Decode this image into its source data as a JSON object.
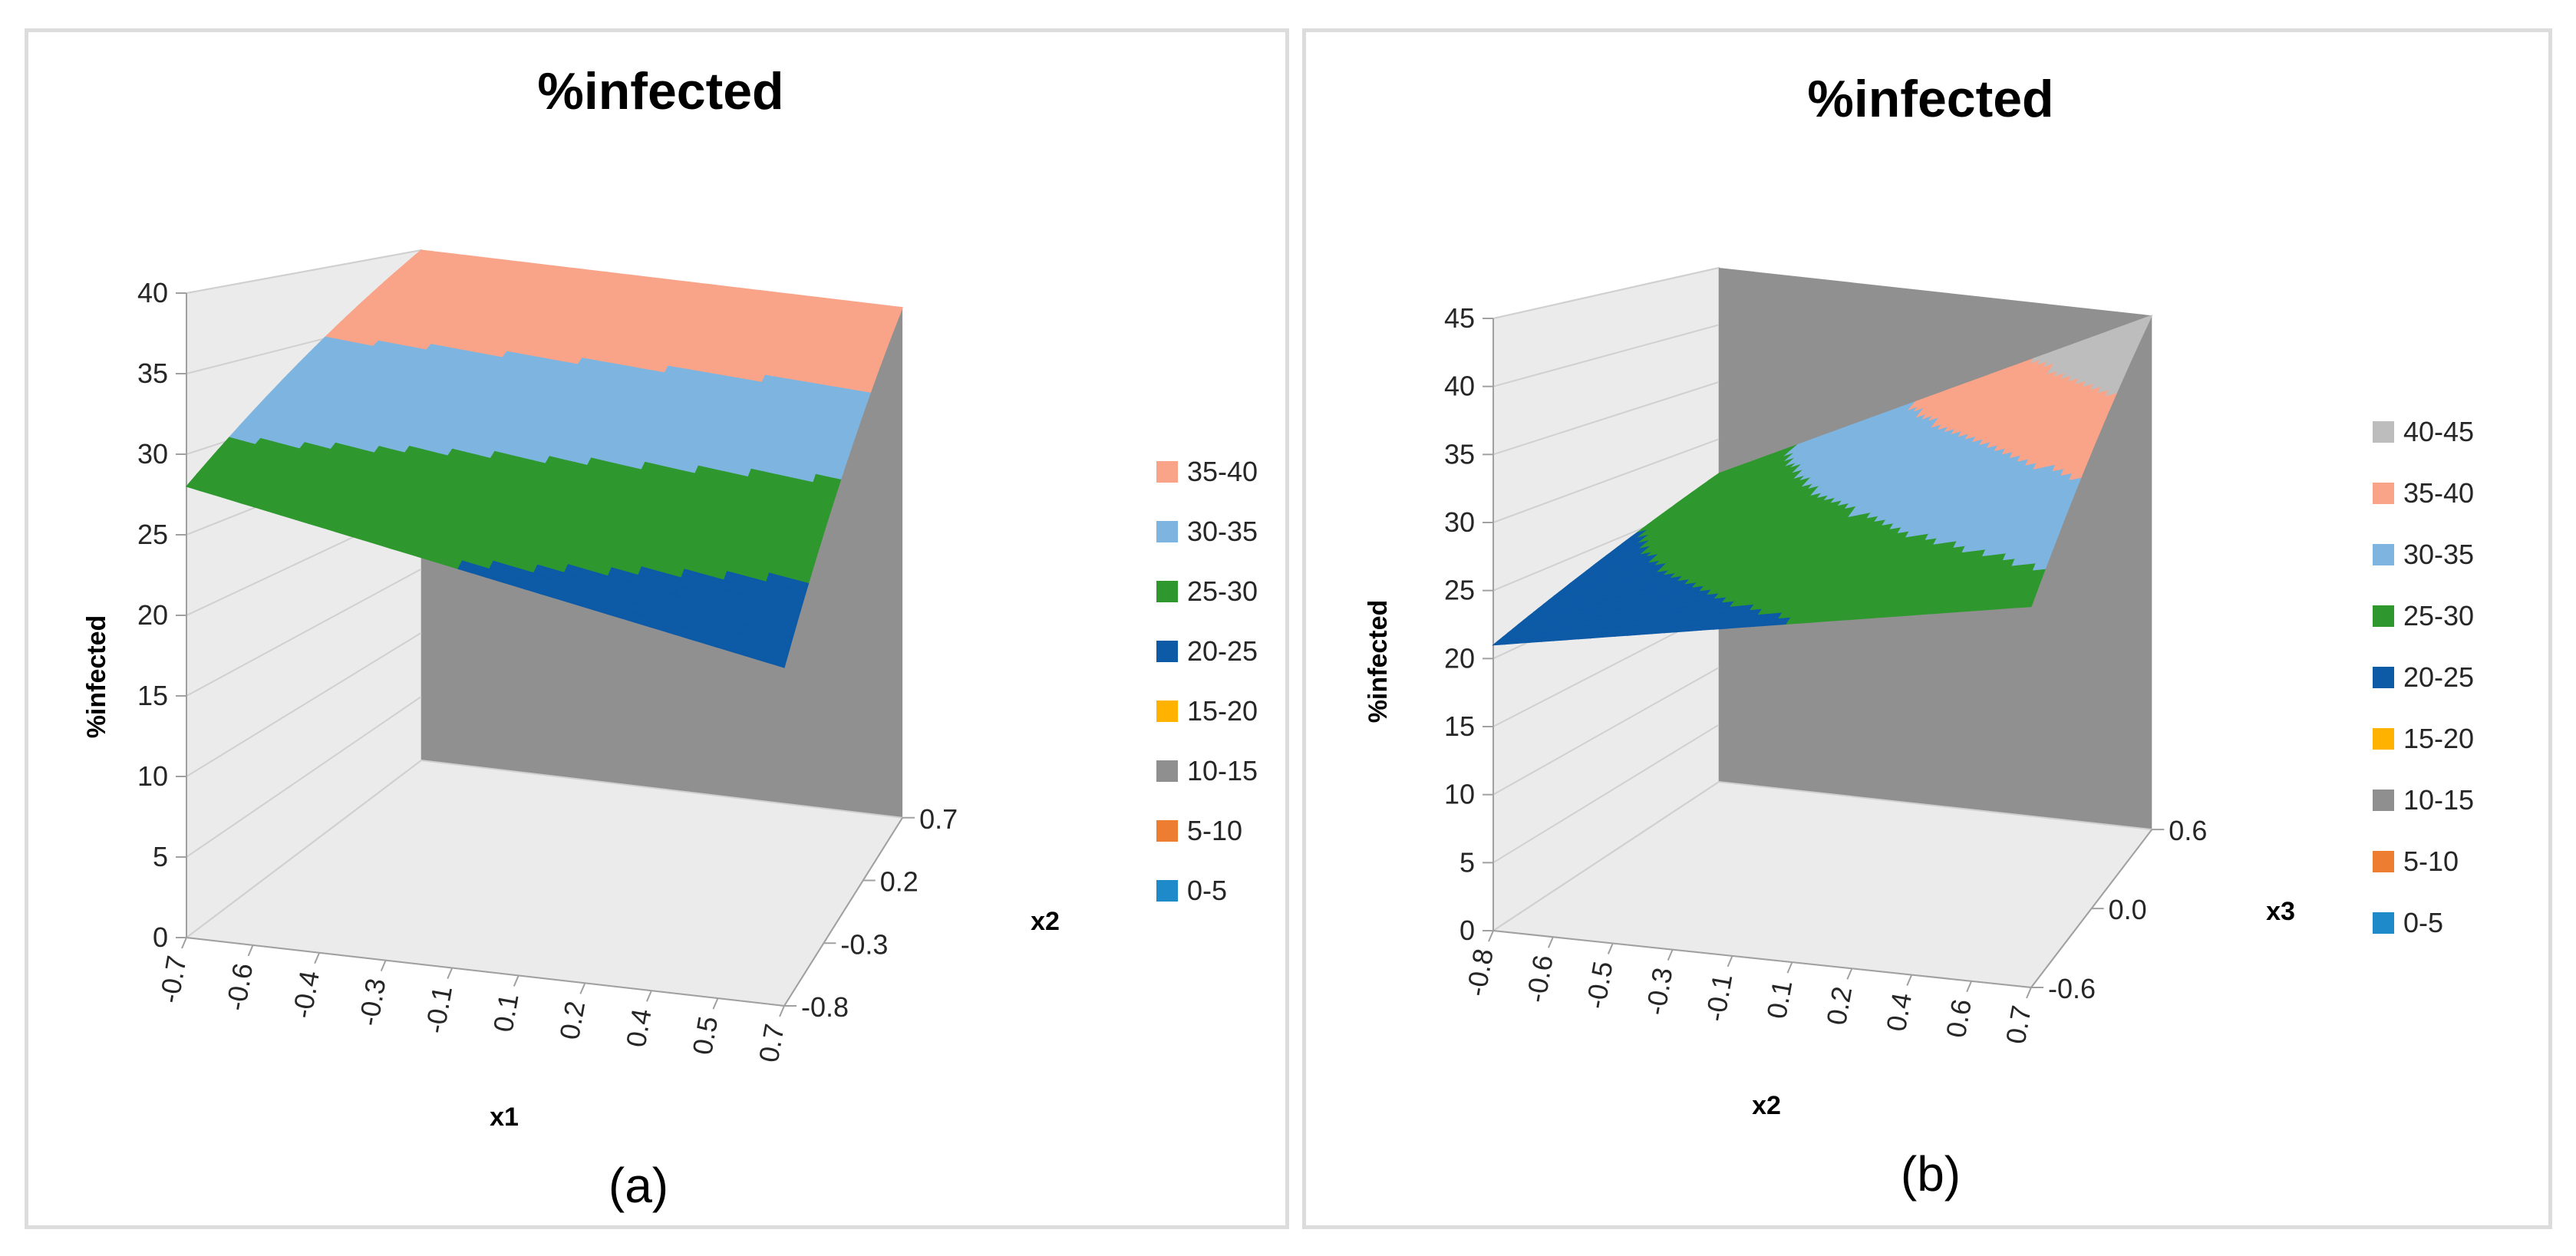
{
  "colors": {
    "0-5": "#1f8ac9",
    "5-10": "#ed7d31",
    "10-15": "#8f8f8f",
    "15-20": "#ffb200",
    "20-25": "#0d5aa7",
    "25-30": "#2e982e",
    "30-35": "#7eb5e0",
    "35-40": "#f9a488",
    "40-45": "#bdbdbd",
    "wall_light": "#ebebeb",
    "wall_dark": "#909090",
    "grid": "#d0d0d0"
  },
  "chart_data": [
    {
      "type": "surface",
      "caption": "(a)",
      "title": "%infected",
      "zlabel": "%infected",
      "xlabel": "x1",
      "ylabel": "x2",
      "zlim": [
        0,
        40
      ],
      "z_ticks": [
        "0",
        "5",
        "10",
        "15",
        "20",
        "25",
        "30",
        "35",
        "40"
      ],
      "x_ticks": [
        "-0.7",
        "-0.6",
        "-0.4",
        "-0.3",
        "-0.1",
        "0.1",
        "0.2",
        "0.4",
        "0.5",
        "0.7"
      ],
      "y_ticks": [
        "-0.8",
        "-0.3",
        "0.2",
        "0.7"
      ],
      "legend": [
        "35-40",
        "30-35",
        "25-30",
        "20-25",
        "15-20",
        "10-15",
        "5-10",
        "0-5"
      ],
      "surface_corners": {
        "x_min_y_min": 28,
        "x_max_y_min": 21,
        "x_min_y_max": 40,
        "x_max_y_max": 40
      }
    },
    {
      "type": "surface",
      "caption": "(b)",
      "title": "%infected",
      "zlabel": "%infected",
      "xlabel": "x2",
      "ylabel": "x3",
      "zlim": [
        0,
        45
      ],
      "z_ticks": [
        "0",
        "5",
        "10",
        "15",
        "20",
        "25",
        "30",
        "35",
        "40",
        "45"
      ],
      "x_ticks": [
        "-0.8",
        "-0.6",
        "-0.5",
        "-0.3",
        "-0.1",
        "0.1",
        "0.2",
        "0.4",
        "0.6",
        "0.7"
      ],
      "y_ticks": [
        "-0.6",
        "0.0",
        "0.6"
      ],
      "legend": [
        "40-45",
        "35-40",
        "30-35",
        "25-30",
        "20-25",
        "15-20",
        "10-15",
        "5-10",
        "0-5"
      ],
      "surface_corners": {
        "x_min_y_min": 21,
        "x_max_y_min": 28,
        "x_min_y_max": 27,
        "x_max_y_max": 45
      }
    }
  ]
}
